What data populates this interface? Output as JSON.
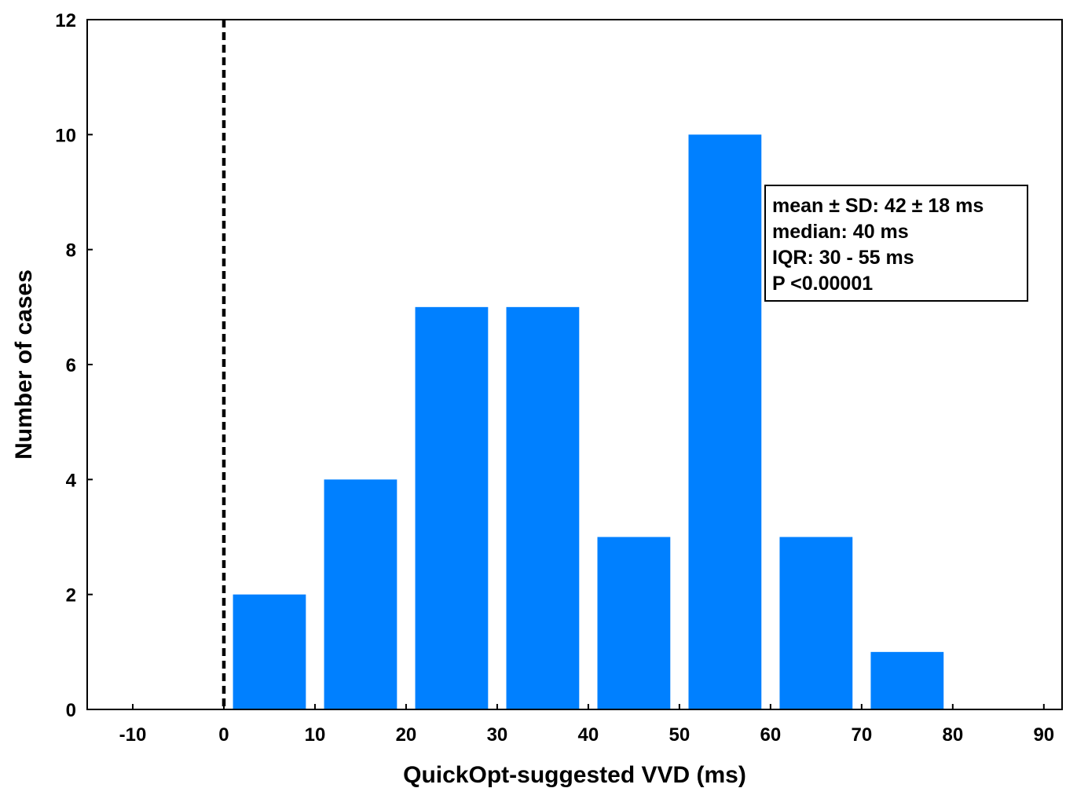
{
  "chart_data": {
    "type": "bar",
    "title": "",
    "xlabel": "QuickOpt-suggested VVD (ms)",
    "ylabel": "Number of cases",
    "xlim": [
      -15,
      92
    ],
    "ylim": [
      0,
      12
    ],
    "x_ticks": [
      "-10",
      "0",
      "10",
      "20",
      "30",
      "40",
      "50",
      "60",
      "70",
      "80",
      "90"
    ],
    "y_ticks": [
      "0",
      "2",
      "4",
      "6",
      "8",
      "10",
      "12"
    ],
    "bars": [
      {
        "x_start": 1,
        "x_end": 9,
        "value": 2
      },
      {
        "x_start": 11,
        "x_end": 19,
        "value": 4
      },
      {
        "x_start": 21,
        "x_end": 29,
        "value": 7
      },
      {
        "x_start": 31,
        "x_end": 39,
        "value": 7
      },
      {
        "x_start": 41,
        "x_end": 49,
        "value": 3
      },
      {
        "x_start": 51,
        "x_end": 59,
        "value": 10
      },
      {
        "x_start": 61,
        "x_end": 69,
        "value": 3
      },
      {
        "x_start": 71,
        "x_end": 79,
        "value": 1
      }
    ],
    "reference_line": {
      "x": 0,
      "style": "dashed"
    },
    "bar_color": "#0080ff",
    "grid": false,
    "legend": "none",
    "annotation": {
      "position": "top-right",
      "lines": [
        "mean ± SD: 42 ± 18 ms",
        "median: 40 ms",
        "IQR: 30 - 55 ms",
        "P <0.00001"
      ]
    }
  }
}
